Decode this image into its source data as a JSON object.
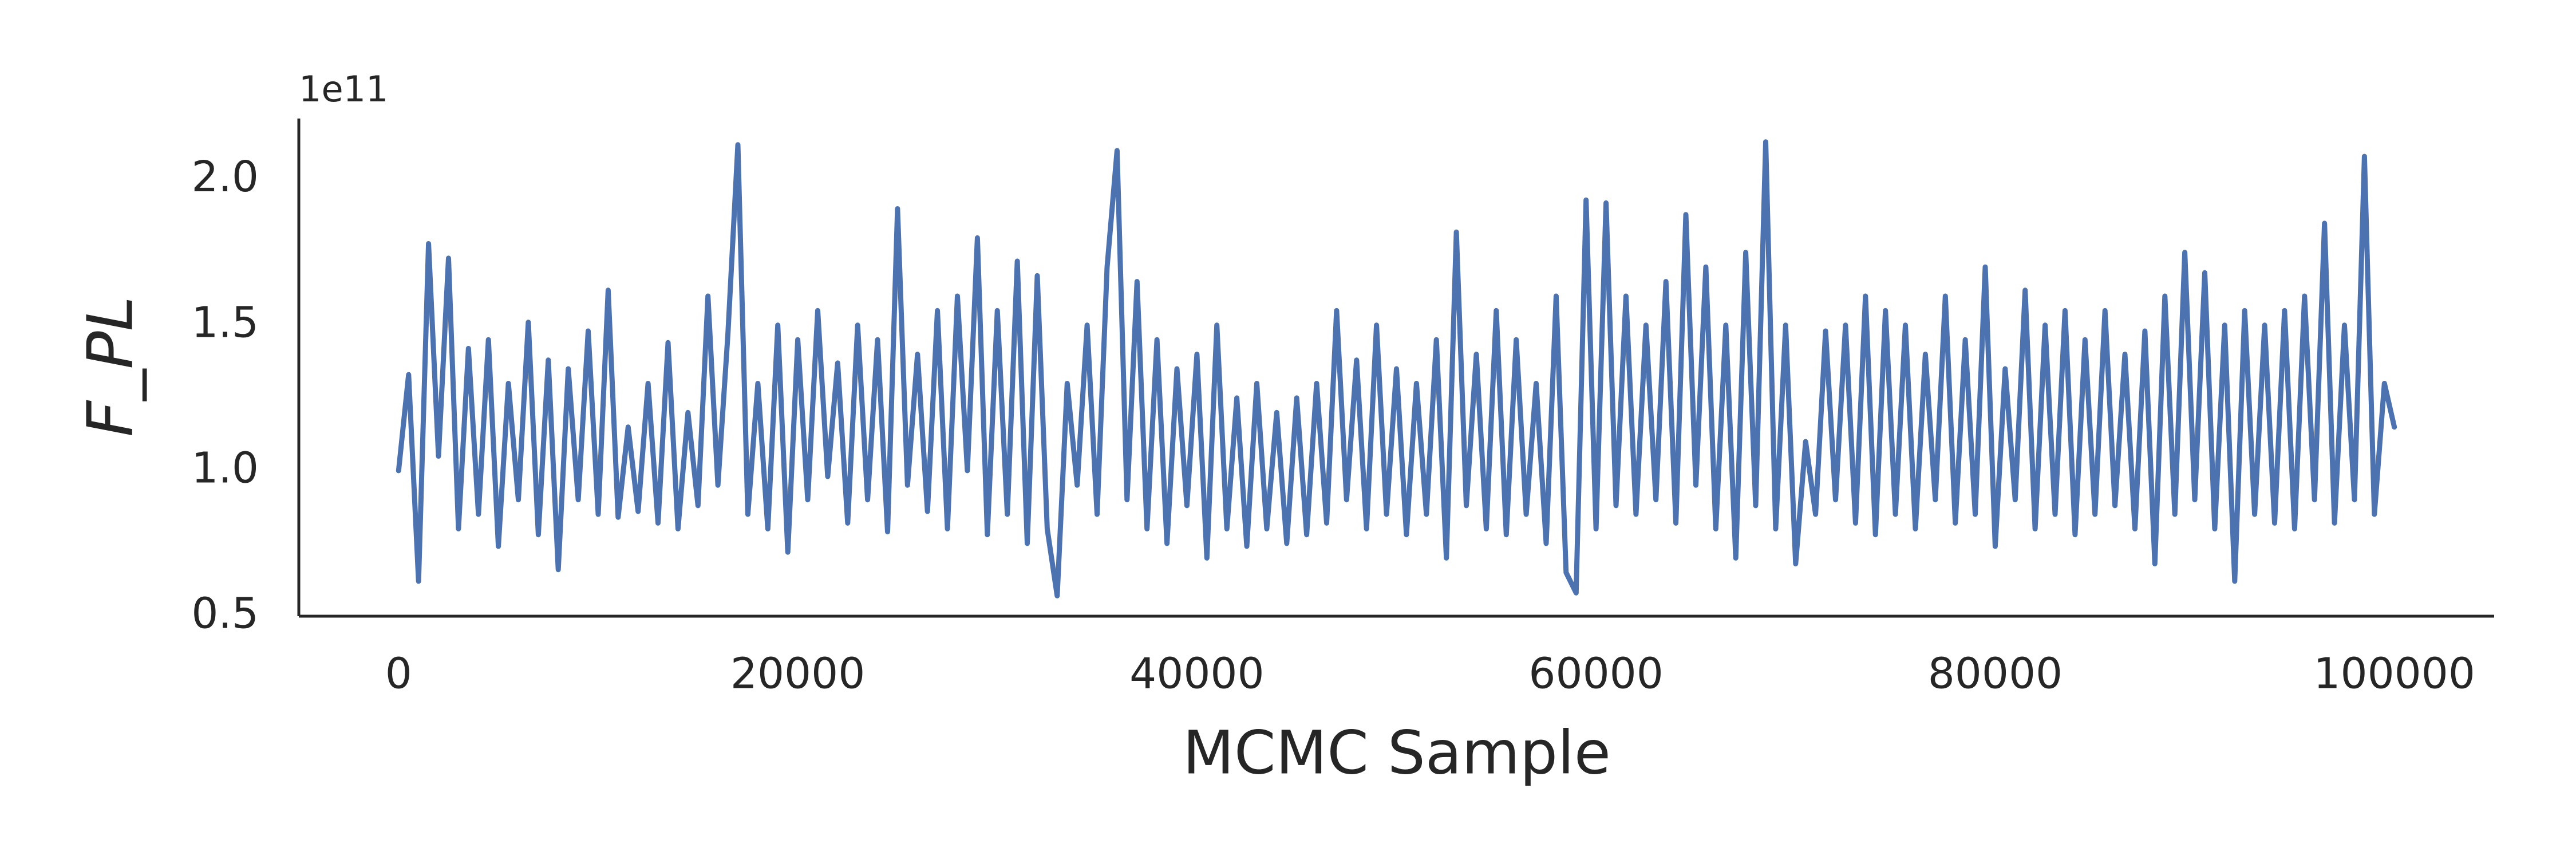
{
  "chart_data": {
    "type": "line",
    "x_label": "MCMC Sample",
    "y_label": "F_PL",
    "y_offset_label": "1e11",
    "xlim": [
      -5000,
      105000
    ],
    "xticks": [
      0,
      20000,
      40000,
      60000,
      80000,
      100000
    ],
    "ylim": [
      0.5,
      2.21
    ],
    "yticks": [
      0.5,
      {
        "value": 1,
        "label": "1.0"
      },
      1.5,
      {
        "value": 2,
        "label": "2.0"
      }
    ],
    "grid": false,
    "x": [
      0,
      500,
      1000,
      1500,
      2000,
      2500,
      3000,
      3500,
      4000,
      4500,
      5000,
      5500,
      6000,
      6500,
      7000,
      7500,
      8000,
      8500,
      9000,
      9500,
      10000,
      10500,
      11000,
      11500,
      12000,
      12500,
      13000,
      13500,
      14000,
      14500,
      15000,
      15500,
      16000,
      16500,
      17000,
      17500,
      18000,
      18500,
      19000,
      19500,
      20000,
      20500,
      21000,
      21500,
      22000,
      22500,
      23000,
      23500,
      24000,
      24500,
      25000,
      25500,
      26000,
      26500,
      27000,
      27500,
      28000,
      28500,
      29000,
      29500,
      30000,
      30500,
      31000,
      31500,
      32000,
      32500,
      33000,
      33500,
      34000,
      34500,
      35000,
      35500,
      36000,
      36500,
      37000,
      37500,
      38000,
      38500,
      39000,
      39500,
      40000,
      40500,
      41000,
      41500,
      42000,
      42500,
      43000,
      43500,
      44000,
      44500,
      45000,
      45500,
      46000,
      46500,
      47000,
      47500,
      48000,
      48500,
      49000,
      49500,
      50000,
      50500,
      51000,
      51500,
      52000,
      52500,
      53000,
      53500,
      54000,
      54500,
      55000,
      55500,
      56000,
      56500,
      57000,
      57500,
      58000,
      58500,
      59000,
      59500,
      60000,
      60500,
      61000,
      61500,
      62000,
      62500,
      63000,
      63500,
      64000,
      64500,
      65000,
      65500,
      66000,
      66500,
      67000,
      67500,
      68000,
      68500,
      69000,
      69500,
      70000,
      70500,
      71000,
      71500,
      72000,
      72500,
      73000,
      73500,
      74000,
      74500,
      75000,
      75500,
      76000,
      76500,
      77000,
      77500,
      78000,
      78500,
      79000,
      79500,
      80000,
      80500,
      81000,
      81500,
      82000,
      82500,
      83000,
      83500,
      84000,
      84500,
      85000,
      85500,
      86000,
      86500,
      87000,
      87500,
      88000,
      88500,
      89000,
      89500,
      90000,
      90500,
      91000,
      91500,
      92000,
      92500,
      93000,
      93500,
      94000,
      94500,
      95000,
      95500,
      96000,
      96500,
      97000,
      97500,
      98000,
      98500,
      99000,
      99500,
      100000
    ],
    "series": [
      {
        "color": "#4c72b0",
        "values": [
          1.0,
          1.33,
          0.62,
          1.78,
          1.05,
          1.73,
          0.8,
          1.42,
          0.85,
          1.45,
          0.74,
          1.3,
          0.9,
          1.51,
          0.78,
          1.38,
          0.66,
          1.35,
          0.9,
          1.48,
          0.85,
          1.62,
          0.84,
          1.15,
          0.86,
          1.3,
          0.82,
          1.44,
          0.8,
          1.2,
          0.88,
          1.6,
          0.95,
          1.47,
          2.12,
          0.85,
          1.3,
          0.8,
          1.5,
          0.72,
          1.45,
          0.9,
          1.55,
          0.98,
          1.37,
          0.82,
          1.5,
          0.9,
          1.45,
          0.79,
          1.9,
          0.95,
          1.4,
          0.86,
          1.55,
          0.8,
          1.6,
          1.0,
          1.8,
          0.78,
          1.55,
          0.85,
          1.72,
          0.75,
          1.67,
          0.8,
          0.57,
          1.3,
          0.95,
          1.5,
          0.85,
          1.7,
          2.1,
          0.9,
          1.65,
          0.8,
          1.45,
          0.75,
          1.35,
          0.88,
          1.4,
          0.7,
          1.5,
          0.8,
          1.25,
          0.74,
          1.3,
          0.8,
          1.2,
          0.75,
          1.25,
          0.78,
          1.3,
          0.82,
          1.55,
          0.9,
          1.38,
          0.8,
          1.5,
          0.85,
          1.35,
          0.78,
          1.3,
          0.85,
          1.45,
          0.7,
          1.82,
          0.88,
          1.4,
          0.8,
          1.55,
          0.78,
          1.45,
          0.85,
          1.3,
          0.75,
          1.6,
          0.65,
          0.58,
          1.93,
          0.8,
          1.92,
          0.88,
          1.6,
          0.85,
          1.5,
          0.9,
          1.65,
          0.82,
          1.88,
          0.95,
          1.7,
          0.8,
          1.5,
          0.7,
          1.75,
          0.88,
          2.13,
          0.8,
          1.5,
          0.68,
          1.1,
          0.85,
          1.48,
          0.9,
          1.5,
          0.82,
          1.6,
          0.78,
          1.55,
          0.85,
          1.5,
          0.8,
          1.4,
          0.9,
          1.6,
          0.82,
          1.45,
          0.85,
          1.7,
          0.74,
          1.35,
          0.9,
          1.62,
          0.8,
          1.5,
          0.85,
          1.55,
          0.78,
          1.45,
          0.85,
          1.55,
          0.88,
          1.4,
          0.8,
          1.48,
          0.68,
          1.6,
          0.85,
          1.75,
          0.9,
          1.68,
          0.8,
          1.5,
          0.62,
          1.55,
          0.85,
          1.5,
          0.82,
          1.55,
          0.8,
          1.6,
          0.9,
          1.85,
          0.82,
          1.5,
          0.9,
          2.08,
          0.85,
          1.3,
          1.15
        ]
      }
    ]
  }
}
